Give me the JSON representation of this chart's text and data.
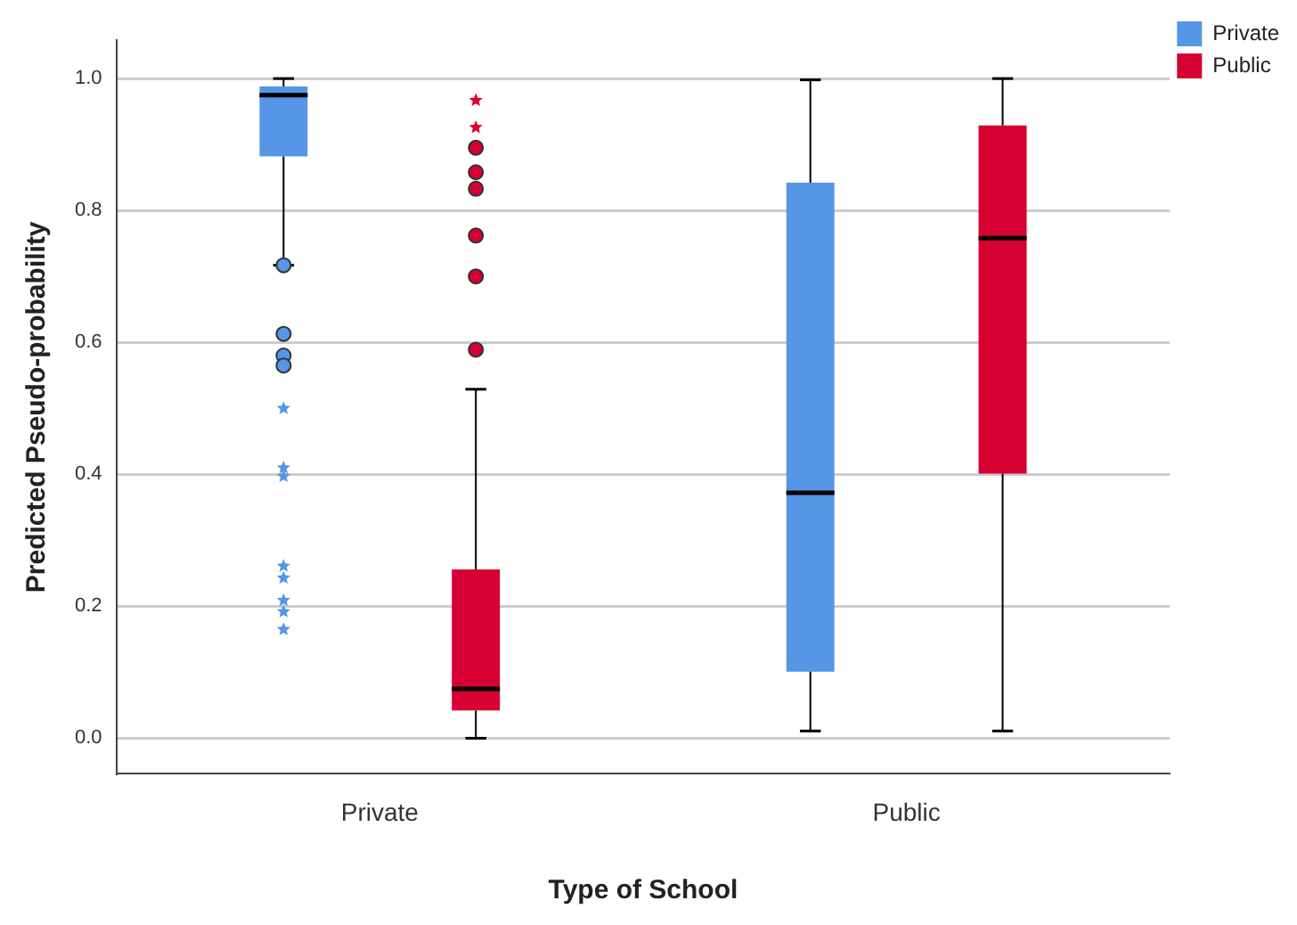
{
  "chart_data": {
    "type": "box",
    "xlabel": "Type of School",
    "ylabel": "Predicted Pseudo-probability",
    "categories": [
      "Private",
      "Public"
    ],
    "ylim": [
      -0.054,
      1.058
    ],
    "yticks": [
      {
        "value": 0,
        "label": "0.0"
      },
      {
        "value": 0.2,
        "label": "0.2"
      },
      {
        "value": 0.4,
        "label": "0.4"
      },
      {
        "value": 0.6,
        "label": "0.6"
      },
      {
        "value": 0.8,
        "label": "0.8"
      },
      {
        "value": 1,
        "label": "1.0"
      }
    ],
    "grid": "y",
    "legend": "top right",
    "series": [
      {
        "name": "Private",
        "color": "#5596e6",
        "boxes": [
          {
            "low": 0.717,
            "q1": 0.882,
            "median": 0.975,
            "q3": 0.988,
            "high": 1.0,
            "outliers": [
              0.717,
              0.613,
              0.58,
              0.565,
              0.5,
              0.41,
              0.397,
              0.261,
              0.243,
              0.209,
              0.192,
              0.165
            ]
          },
          {
            "low": 0.011,
            "q1": 0.101,
            "median": 0.372,
            "q3": 0.842,
            "high": 0.998
          }
        ]
      },
      {
        "name": "Public",
        "color": "#d60032",
        "boxes": [
          {
            "low": 0.0,
            "q1": 0.042,
            "median": 0.075,
            "q3": 0.256,
            "high": 0.529,
            "outliers": [
              0.589,
              0.7,
              0.762,
              0.833,
              0.858,
              0.895,
              0.926,
              0.967
            ]
          },
          {
            "low": 0.011,
            "q1": 0.401,
            "median": 0.758,
            "q3": 0.929,
            "high": 1.0
          }
        ]
      }
    ]
  }
}
